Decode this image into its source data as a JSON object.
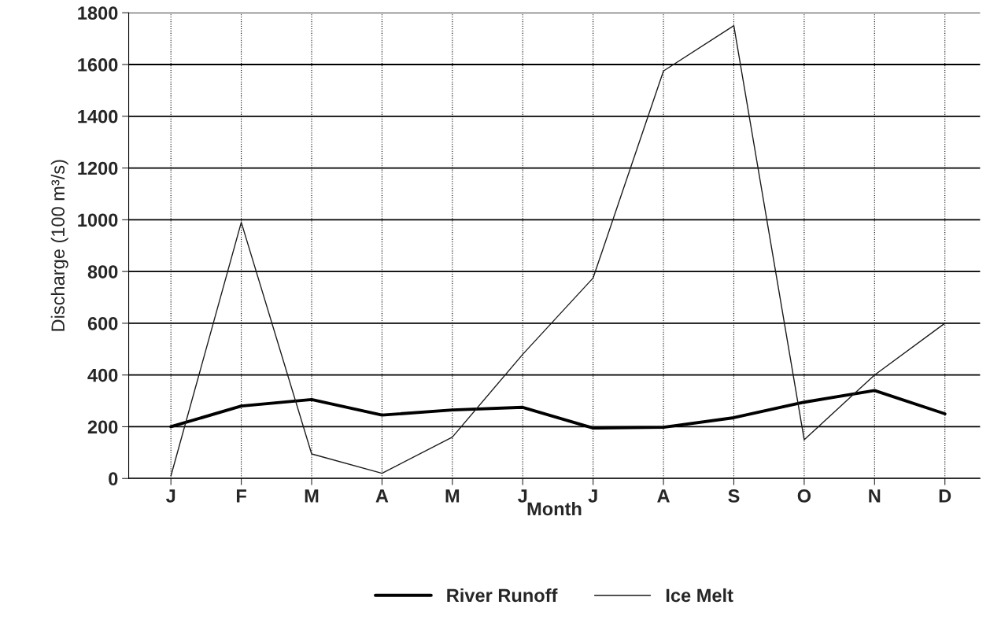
{
  "chart_data": {
    "type": "line",
    "xlabel": "Month",
    "ylabel": "Discharge (100 m³/s)",
    "categories": [
      "J",
      "F",
      "M",
      "A",
      "M",
      "J",
      "J",
      "A",
      "S",
      "O",
      "N",
      "D"
    ],
    "series": [
      {
        "name": "River Runoff",
        "color": "#000000",
        "values": [
          200,
          280,
          305,
          245,
          265,
          275,
          195,
          198,
          235,
          295,
          340,
          250
        ]
      },
      {
        "name": "Ice Melt",
        "color": "#1a1a1a",
        "values": [
          10,
          990,
          95,
          20,
          160,
          480,
          775,
          1575,
          1750,
          150,
          400,
          600
        ]
      }
    ],
    "ylim": [
      0,
      1800
    ],
    "yticks": [
      0,
      200,
      400,
      600,
      800,
      1000,
      1200,
      1400,
      1600,
      1800
    ],
    "grid": true,
    "legend": "bottom",
    "marker": "none",
    "line_style": "solid"
  }
}
